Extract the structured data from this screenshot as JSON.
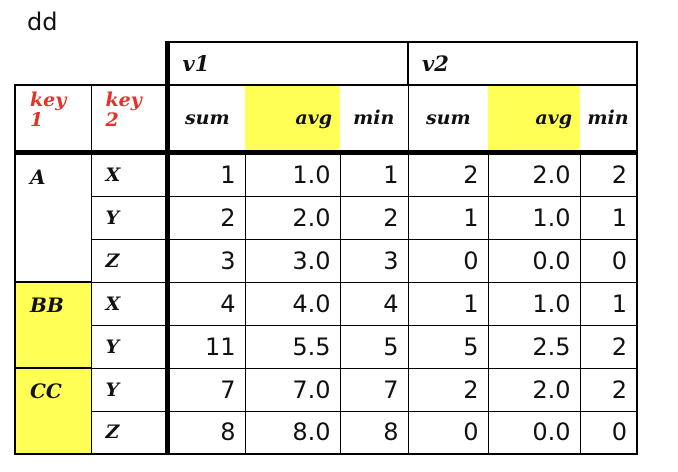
{
  "caption": "dd",
  "colors": {
    "highlight": "#ffff55",
    "key_header": "#e5312a",
    "text": "#111111",
    "border": "#000000"
  },
  "header": {
    "groups": [
      "v1",
      "v2"
    ],
    "key_labels": [
      "key 1",
      "key 2"
    ],
    "stats": [
      "sum",
      "avg",
      "min",
      "sum",
      "avg",
      "min"
    ]
  },
  "rows": [
    {
      "key1": "A",
      "key2": "X",
      "values": [
        "1",
        "1.0",
        "1",
        "2",
        "2.0",
        "2"
      ]
    },
    {
      "key1": "",
      "key2": "Y",
      "values": [
        "2",
        "2.0",
        "2",
        "1",
        "1.0",
        "1"
      ]
    },
    {
      "key1": "",
      "key2": "Z",
      "values": [
        "3",
        "3.0",
        "3",
        "0",
        "0.0",
        "0"
      ]
    },
    {
      "key1": "BB",
      "key2": "X",
      "values": [
        "4",
        "4.0",
        "4",
        "1",
        "1.0",
        "1"
      ]
    },
    {
      "key1": "",
      "key2": "Y",
      "values": [
        "11",
        "5.5",
        "5",
        "5",
        "2.5",
        "2"
      ]
    },
    {
      "key1": "CC",
      "key2": "Y",
      "values": [
        "7",
        "7.0",
        "7",
        "2",
        "2.0",
        "2"
      ]
    },
    {
      "key1": "",
      "key2": "Z",
      "values": [
        "8",
        "8.0",
        "8",
        "0",
        "0.0",
        "0"
      ]
    }
  ]
}
